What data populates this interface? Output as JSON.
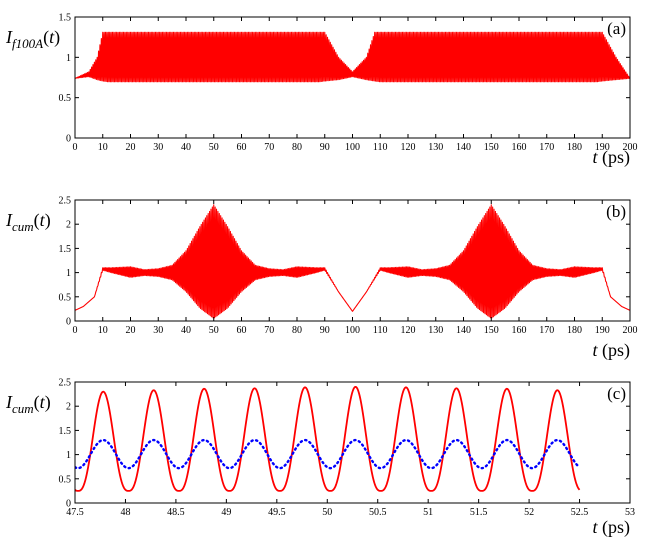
{
  "chart_data": [
    {
      "type": "line",
      "panel_label": "(a)",
      "ylabel": {
        "main": "I",
        "sub": "f100A",
        "tail": "(t)"
      },
      "xlabel": {
        "main": "t",
        "tail": " (ps)"
      },
      "xlim": [
        0,
        200
      ],
      "ylim": [
        0,
        1.5
      ],
      "x_ticks": [
        "0",
        "10",
        "20",
        "30",
        "40",
        "50",
        "60",
        "70",
        "80",
        "90",
        "100",
        "110",
        "120",
        "130",
        "140",
        "150",
        "160",
        "170",
        "180",
        "190",
        "200"
      ],
      "y_ticks": [
        "0",
        "0.5",
        "1",
        "1.5"
      ],
      "grid": false,
      "series": [
        {
          "color": "#ff0000",
          "style": "solid",
          "description_hint": "Envelope between min and max; fast oscillation dense 20-80 ps",
          "envelope_x": [
            0,
            5,
            8,
            10,
            12,
            20,
            80,
            88,
            90,
            95,
            100,
            105,
            108,
            110,
            112,
            120,
            180,
            188,
            190,
            195,
            200
          ],
          "envelope_lower": [
            0.74,
            0.76,
            0.72,
            0.7,
            0.69,
            0.69,
            0.69,
            0.69,
            0.7,
            0.72,
            0.76,
            0.72,
            0.7,
            0.69,
            0.69,
            0.69,
            0.69,
            0.69,
            0.7,
            0.72,
            0.74
          ],
          "envelope_upper": [
            0.74,
            0.82,
            1.0,
            1.31,
            1.31,
            1.31,
            1.31,
            1.31,
            1.31,
            1.0,
            0.82,
            1.0,
            1.31,
            1.31,
            1.31,
            1.31,
            1.31,
            1.31,
            1.31,
            1.0,
            0.74
          ]
        }
      ]
    },
    {
      "type": "line",
      "panel_label": "(b)",
      "ylabel": {
        "main": "I",
        "sub": "cum",
        "tail": "(t)"
      },
      "xlabel": {
        "main": "t",
        "tail": " (ps)"
      },
      "xlim": [
        0,
        200
      ],
      "ylim": [
        0,
        2.5
      ],
      "x_ticks": [
        "0",
        "10",
        "20",
        "30",
        "40",
        "50",
        "60",
        "70",
        "80",
        "90",
        "100",
        "110",
        "120",
        "130",
        "140",
        "150",
        "160",
        "170",
        "180",
        "190",
        "200"
      ],
      "y_ticks": [
        "0",
        "0.5",
        "1",
        "1.5",
        "2",
        "2.5"
      ],
      "grid": false,
      "series": [
        {
          "color": "#ff0000",
          "style": "solid",
          "envelope_x": [
            0,
            3,
            7,
            10,
            13,
            20,
            25,
            30,
            35,
            40,
            45,
            50,
            55,
            60,
            65,
            70,
            75,
            80,
            87,
            90,
            95,
            100,
            105,
            110,
            113,
            120,
            125,
            130,
            135,
            140,
            145,
            150,
            155,
            160,
            165,
            170,
            175,
            180,
            187,
            190,
            193,
            197,
            200
          ],
          "envelope_lower": [
            0.22,
            0.3,
            0.5,
            1.05,
            1.0,
            0.9,
            0.94,
            0.92,
            0.85,
            0.6,
            0.25,
            0.03,
            0.25,
            0.6,
            0.85,
            0.92,
            0.94,
            0.9,
            1.0,
            1.05,
            0.6,
            0.2,
            0.6,
            1.05,
            1.0,
            0.9,
            0.94,
            0.92,
            0.85,
            0.6,
            0.25,
            0.03,
            0.25,
            0.6,
            0.85,
            0.92,
            0.94,
            0.9,
            1.0,
            1.05,
            0.5,
            0.3,
            0.22
          ],
          "envelope_upper": [
            0.22,
            0.3,
            0.5,
            1.1,
            1.1,
            1.12,
            1.06,
            1.08,
            1.15,
            1.45,
            1.95,
            2.4,
            1.95,
            1.45,
            1.15,
            1.08,
            1.06,
            1.12,
            1.1,
            1.1,
            0.6,
            0.2,
            0.6,
            1.1,
            1.1,
            1.12,
            1.06,
            1.08,
            1.15,
            1.45,
            1.95,
            2.4,
            1.95,
            1.45,
            1.15,
            1.08,
            1.06,
            1.12,
            1.1,
            1.1,
            0.5,
            0.3,
            0.22
          ]
        }
      ]
    },
    {
      "type": "line",
      "panel_label": "(c)",
      "ylabel": {
        "main": "I",
        "sub": "cum",
        "tail": "(t)"
      },
      "xlabel": {
        "main": "t",
        "tail": " (ps)"
      },
      "xlim": [
        47.5,
        53
      ],
      "ylim": [
        0,
        2.5
      ],
      "x_ticks": [
        "47.5",
        "48",
        "48.5",
        "49",
        "49.5",
        "50",
        "50.5",
        "51",
        "51.5",
        "52",
        "52.5",
        "53"
      ],
      "y_ticks": [
        "0",
        "0.5",
        "1",
        "1.5",
        "2",
        "2.5"
      ],
      "grid": false,
      "series": [
        {
          "color": "#ff0000",
          "style": "solid",
          "x_range": [
            47.5,
            52.5
          ],
          "period": 0.5,
          "peak_x": 47.78,
          "min_value": 0.25,
          "peak_values": [
            2.3,
            2.33,
            2.36,
            2.37,
            2.39,
            2.4,
            2.39,
            2.37,
            2.36,
            2.33
          ]
        },
        {
          "color": "#0000ff",
          "style": "dotted",
          "x_range": [
            47.5,
            52.5
          ],
          "period": 0.5,
          "peak_x": 47.78,
          "min_value": 0.72,
          "max_value": 1.3
        }
      ]
    }
  ]
}
